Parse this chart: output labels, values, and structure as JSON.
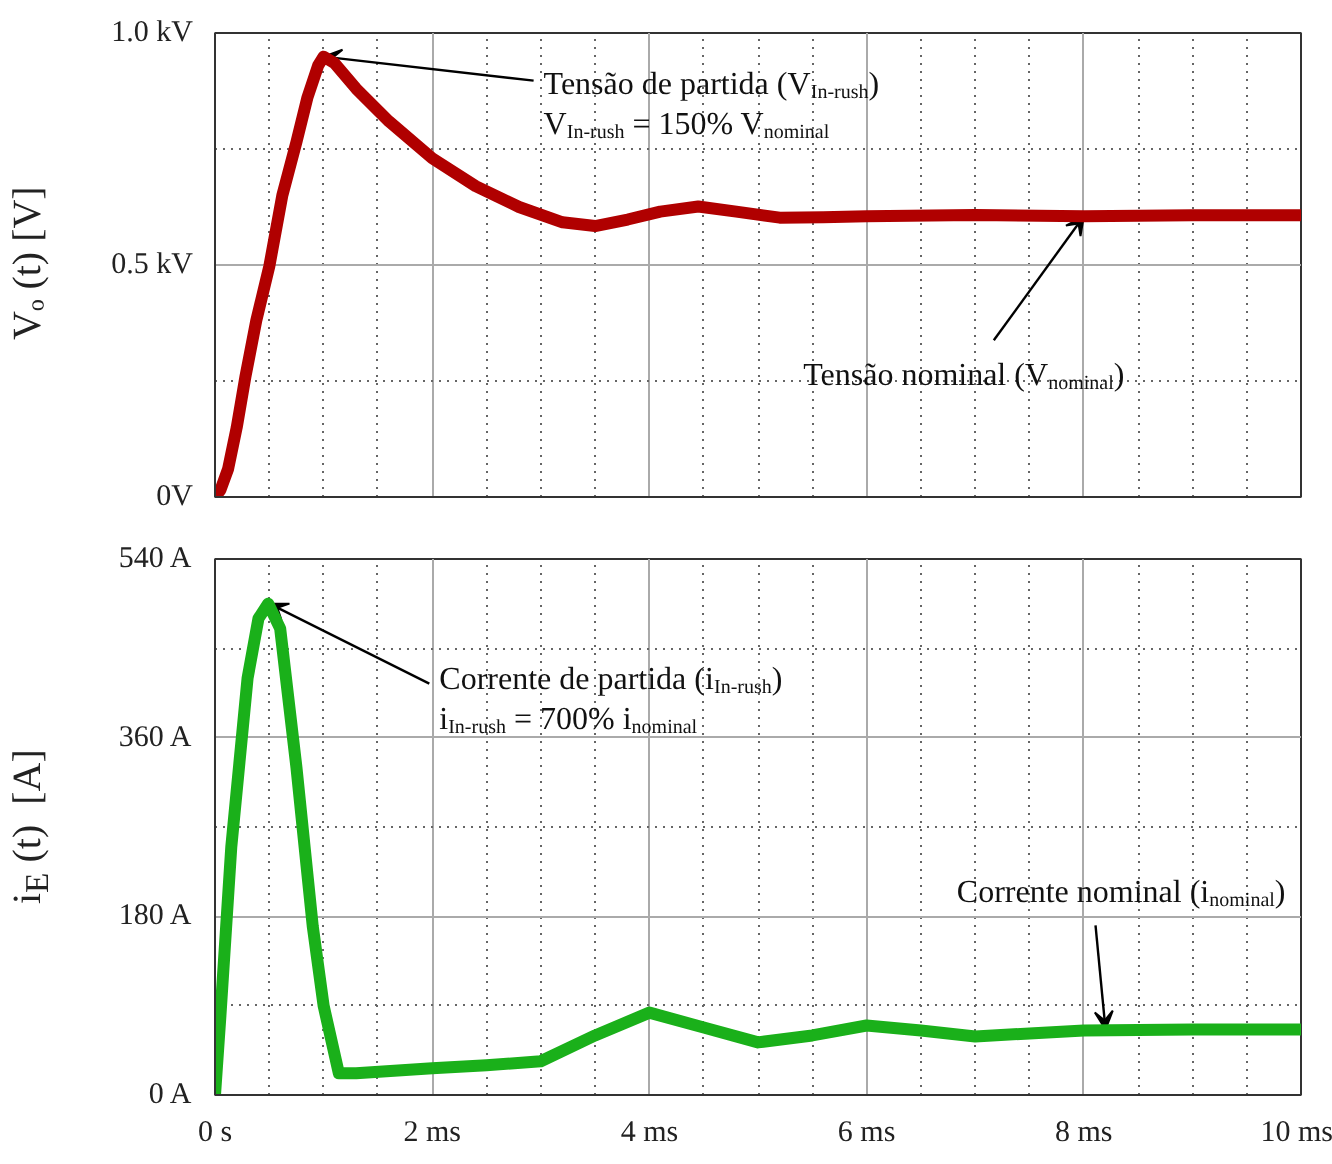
{
  "chart_data": [
    {
      "type": "line",
      "ylabel": "Vₒ (t) [V]",
      "x": [
        0,
        0.05,
        0.12,
        0.2,
        0.28,
        0.38,
        0.5,
        0.62,
        0.75,
        0.85,
        0.95,
        1.0,
        1.1,
        1.3,
        1.6,
        2.0,
        2.4,
        2.8,
        3.2,
        3.5,
        3.8,
        4.1,
        4.45,
        4.8,
        5.2,
        5.6,
        6.0,
        7.0,
        8.0,
        9.0,
        10.0
      ],
      "series": [
        {
          "color": "#b00000",
          "values": [
            0,
            0.015,
            0.06,
            0.15,
            0.259,
            0.38,
            0.497,
            0.65,
            0.765,
            0.86,
            0.93,
            0.949,
            0.935,
            0.88,
            0.81,
            0.73,
            0.67,
            0.625,
            0.592,
            0.584,
            0.598,
            0.615,
            0.626,
            0.615,
            0.602,
            0.603,
            0.605,
            0.608,
            0.605,
            0.607,
            0.607
          ]
        }
      ],
      "xlim": [
        0,
        10
      ],
      "xticks": [
        0,
        2,
        4,
        6,
        8,
        10
      ],
      "ylim": [
        0,
        1.0
      ],
      "yticks": [
        {
          "value": 0,
          "label": "0V"
        },
        {
          "value": 0.25,
          "label": null
        },
        {
          "value": 0.5,
          "label": "0.5 kV"
        },
        {
          "value": 0.75,
          "label": null
        },
        {
          "value": 1.0,
          "label": "1.0 kV"
        }
      ],
      "tick_labels": "y",
      "grid": true,
      "line_style": "solid",
      "marker": "none",
      "annotations": [
        {
          "text": "Tensão de partida (V$_{In-rush}$)",
          "x": 1.0,
          "y": 0.949
        },
        {
          "text": "V$_{In-rush}$ = 150% V$_{nominal}$",
          "x": 1.0,
          "y": 0.949
        },
        {
          "text": "Tensão nominal (V$_{nominal}$)",
          "x": 8.0,
          "y": 0.605
        }
      ]
    },
    {
      "type": "line",
      "ylabel": "i$_{E}$ (t)  [A]",
      "x": [
        0,
        0.05,
        0.15,
        0.3,
        0.4,
        0.49,
        0.6,
        0.75,
        0.9,
        1.0,
        1.14,
        1.3,
        2.0,
        2.5,
        3.0,
        3.5,
        4.0,
        4.5,
        5.0,
        5.5,
        6.0,
        6.5,
        7.0,
        7.5,
        8.0,
        9.0,
        10.0
      ],
      "series": [
        {
          "color": "#1ab01a",
          "values": [
            0,
            80,
            250,
            420,
            480,
            495,
            470,
            330,
            170,
            90,
            22,
            22,
            27,
            30,
            34,
            60,
            83,
            68,
            53,
            60,
            70,
            65,
            59,
            62,
            65,
            66,
            66
          ]
        }
      ],
      "xlim": [
        0,
        10
      ],
      "xticks": [
        {
          "value": 0,
          "label": "0 s"
        },
        {
          "value": 2,
          "label": "2 ms"
        },
        {
          "value": 4,
          "label": "4 ms"
        },
        {
          "value": 6,
          "label": "6 ms"
        },
        {
          "value": 8,
          "label": "8 ms"
        },
        {
          "value": 10,
          "label": "10 ms"
        }
      ],
      "ylim": [
        0,
        540
      ],
      "yticks": [
        {
          "value": 0,
          "label": "0 A"
        },
        {
          "value": 90,
          "label": null
        },
        {
          "value": 180,
          "label": "180 A"
        },
        {
          "value": 270,
          "label": null
        },
        {
          "value": 360,
          "label": "360 A"
        },
        {
          "value": 450,
          "label": null
        },
        {
          "value": 540,
          "label": "540 A"
        }
      ],
      "grid": true,
      "line_style": "solid",
      "marker": "none",
      "annotations": [
        {
          "text": "Corrente de partida (i$_{In-rush}$)",
          "x": 0.5,
          "y": 495
        },
        {
          "text": "i$_{In-rush}$ = 700% i$_{nominal}$",
          "x": 0.5,
          "y": 495
        },
        {
          "text": "Corrente nominal (i$_{nominal}$)",
          "x": 8.2,
          "y": 66
        }
      ]
    }
  ]
}
